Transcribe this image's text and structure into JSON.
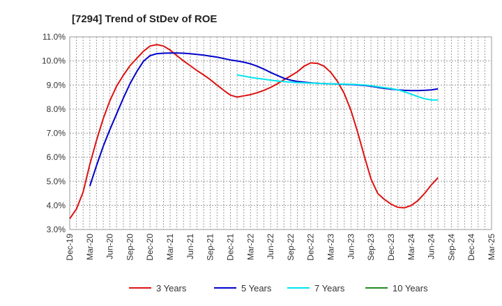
{
  "chart_data": {
    "type": "line",
    "title": "[7294]  Trend of StDev of ROE",
    "xlabel": "",
    "ylabel": "",
    "ylim": [
      3.0,
      11.0
    ],
    "y_ticks": [
      3.0,
      4.0,
      5.0,
      6.0,
      7.0,
      8.0,
      9.0,
      10.0,
      11.0
    ],
    "y_tick_labels": [
      "3.0%",
      "4.0%",
      "5.0%",
      "6.0%",
      "7.0%",
      "8.0%",
      "9.0%",
      "10.0%",
      "11.0%"
    ],
    "x_tick_labels": [
      "Dec-19",
      "Mar-20",
      "Jun-20",
      "Sep-20",
      "Dec-20",
      "Mar-21",
      "Jun-21",
      "Sep-21",
      "Dec-21",
      "Mar-22",
      "Jun-22",
      "Sep-22",
      "Dec-22",
      "Mar-23",
      "Jun-23",
      "Sep-23",
      "Dec-23",
      "Mar-24",
      "Jun-24",
      "Sep-24",
      "Dec-24",
      "Mar-25"
    ],
    "grid": true,
    "legend_position": "bottom",
    "series": [
      {
        "name": "3 Years",
        "color": "#dd1111",
        "values": [
          3.45,
          3.85,
          4.55,
          5.7,
          6.7,
          7.6,
          8.35,
          8.95,
          9.4,
          9.8,
          10.1,
          10.4,
          10.62,
          10.68,
          10.62,
          10.45,
          10.22,
          10.0,
          9.8,
          9.6,
          9.42,
          9.22,
          9.0,
          8.78,
          8.58,
          8.5,
          8.55,
          8.6,
          8.68,
          8.78,
          8.9,
          9.05,
          9.22,
          9.38,
          9.55,
          9.78,
          9.92,
          9.9,
          9.78,
          9.52,
          9.15,
          8.65,
          7.95,
          7.05,
          6.05,
          5.1,
          4.5,
          4.25,
          4.05,
          3.92,
          3.9,
          4.0,
          4.2,
          4.5,
          4.85,
          5.15
        ]
      },
      {
        "name": "5 Years",
        "color": "#0000cc",
        "values": [
          null,
          null,
          null,
          4.8,
          5.65,
          6.45,
          7.15,
          7.8,
          8.45,
          9.05,
          9.55,
          9.98,
          10.22,
          10.3,
          10.32,
          10.33,
          10.33,
          10.32,
          10.3,
          10.27,
          10.24,
          10.2,
          10.16,
          10.1,
          10.04,
          10.0,
          9.95,
          9.88,
          9.78,
          9.66,
          9.52,
          9.4,
          9.28,
          9.2,
          9.15,
          9.12,
          9.09,
          9.07,
          9.06,
          9.05,
          9.04,
          9.03,
          9.02,
          9.0,
          8.98,
          8.95,
          8.9,
          8.86,
          8.83,
          8.8,
          8.78,
          8.77,
          8.77,
          8.78,
          8.8,
          8.84
        ]
      },
      {
        "name": "7 Years",
        "color": "#00e5ee",
        "values": [
          null,
          null,
          null,
          null,
          null,
          null,
          null,
          null,
          null,
          null,
          null,
          null,
          null,
          null,
          null,
          null,
          null,
          null,
          null,
          null,
          null,
          null,
          null,
          null,
          null,
          9.42,
          9.37,
          9.32,
          9.28,
          9.24,
          9.2,
          9.17,
          9.14,
          9.12,
          9.1,
          9.09,
          9.08,
          9.07,
          9.06,
          9.05,
          9.04,
          9.04,
          9.03,
          9.02,
          9.0,
          8.97,
          8.93,
          8.89,
          8.85,
          8.8,
          8.72,
          8.62,
          8.52,
          8.43,
          8.38,
          8.38
        ]
      },
      {
        "name": "10 Years",
        "color": "#228822",
        "values": []
      }
    ]
  }
}
